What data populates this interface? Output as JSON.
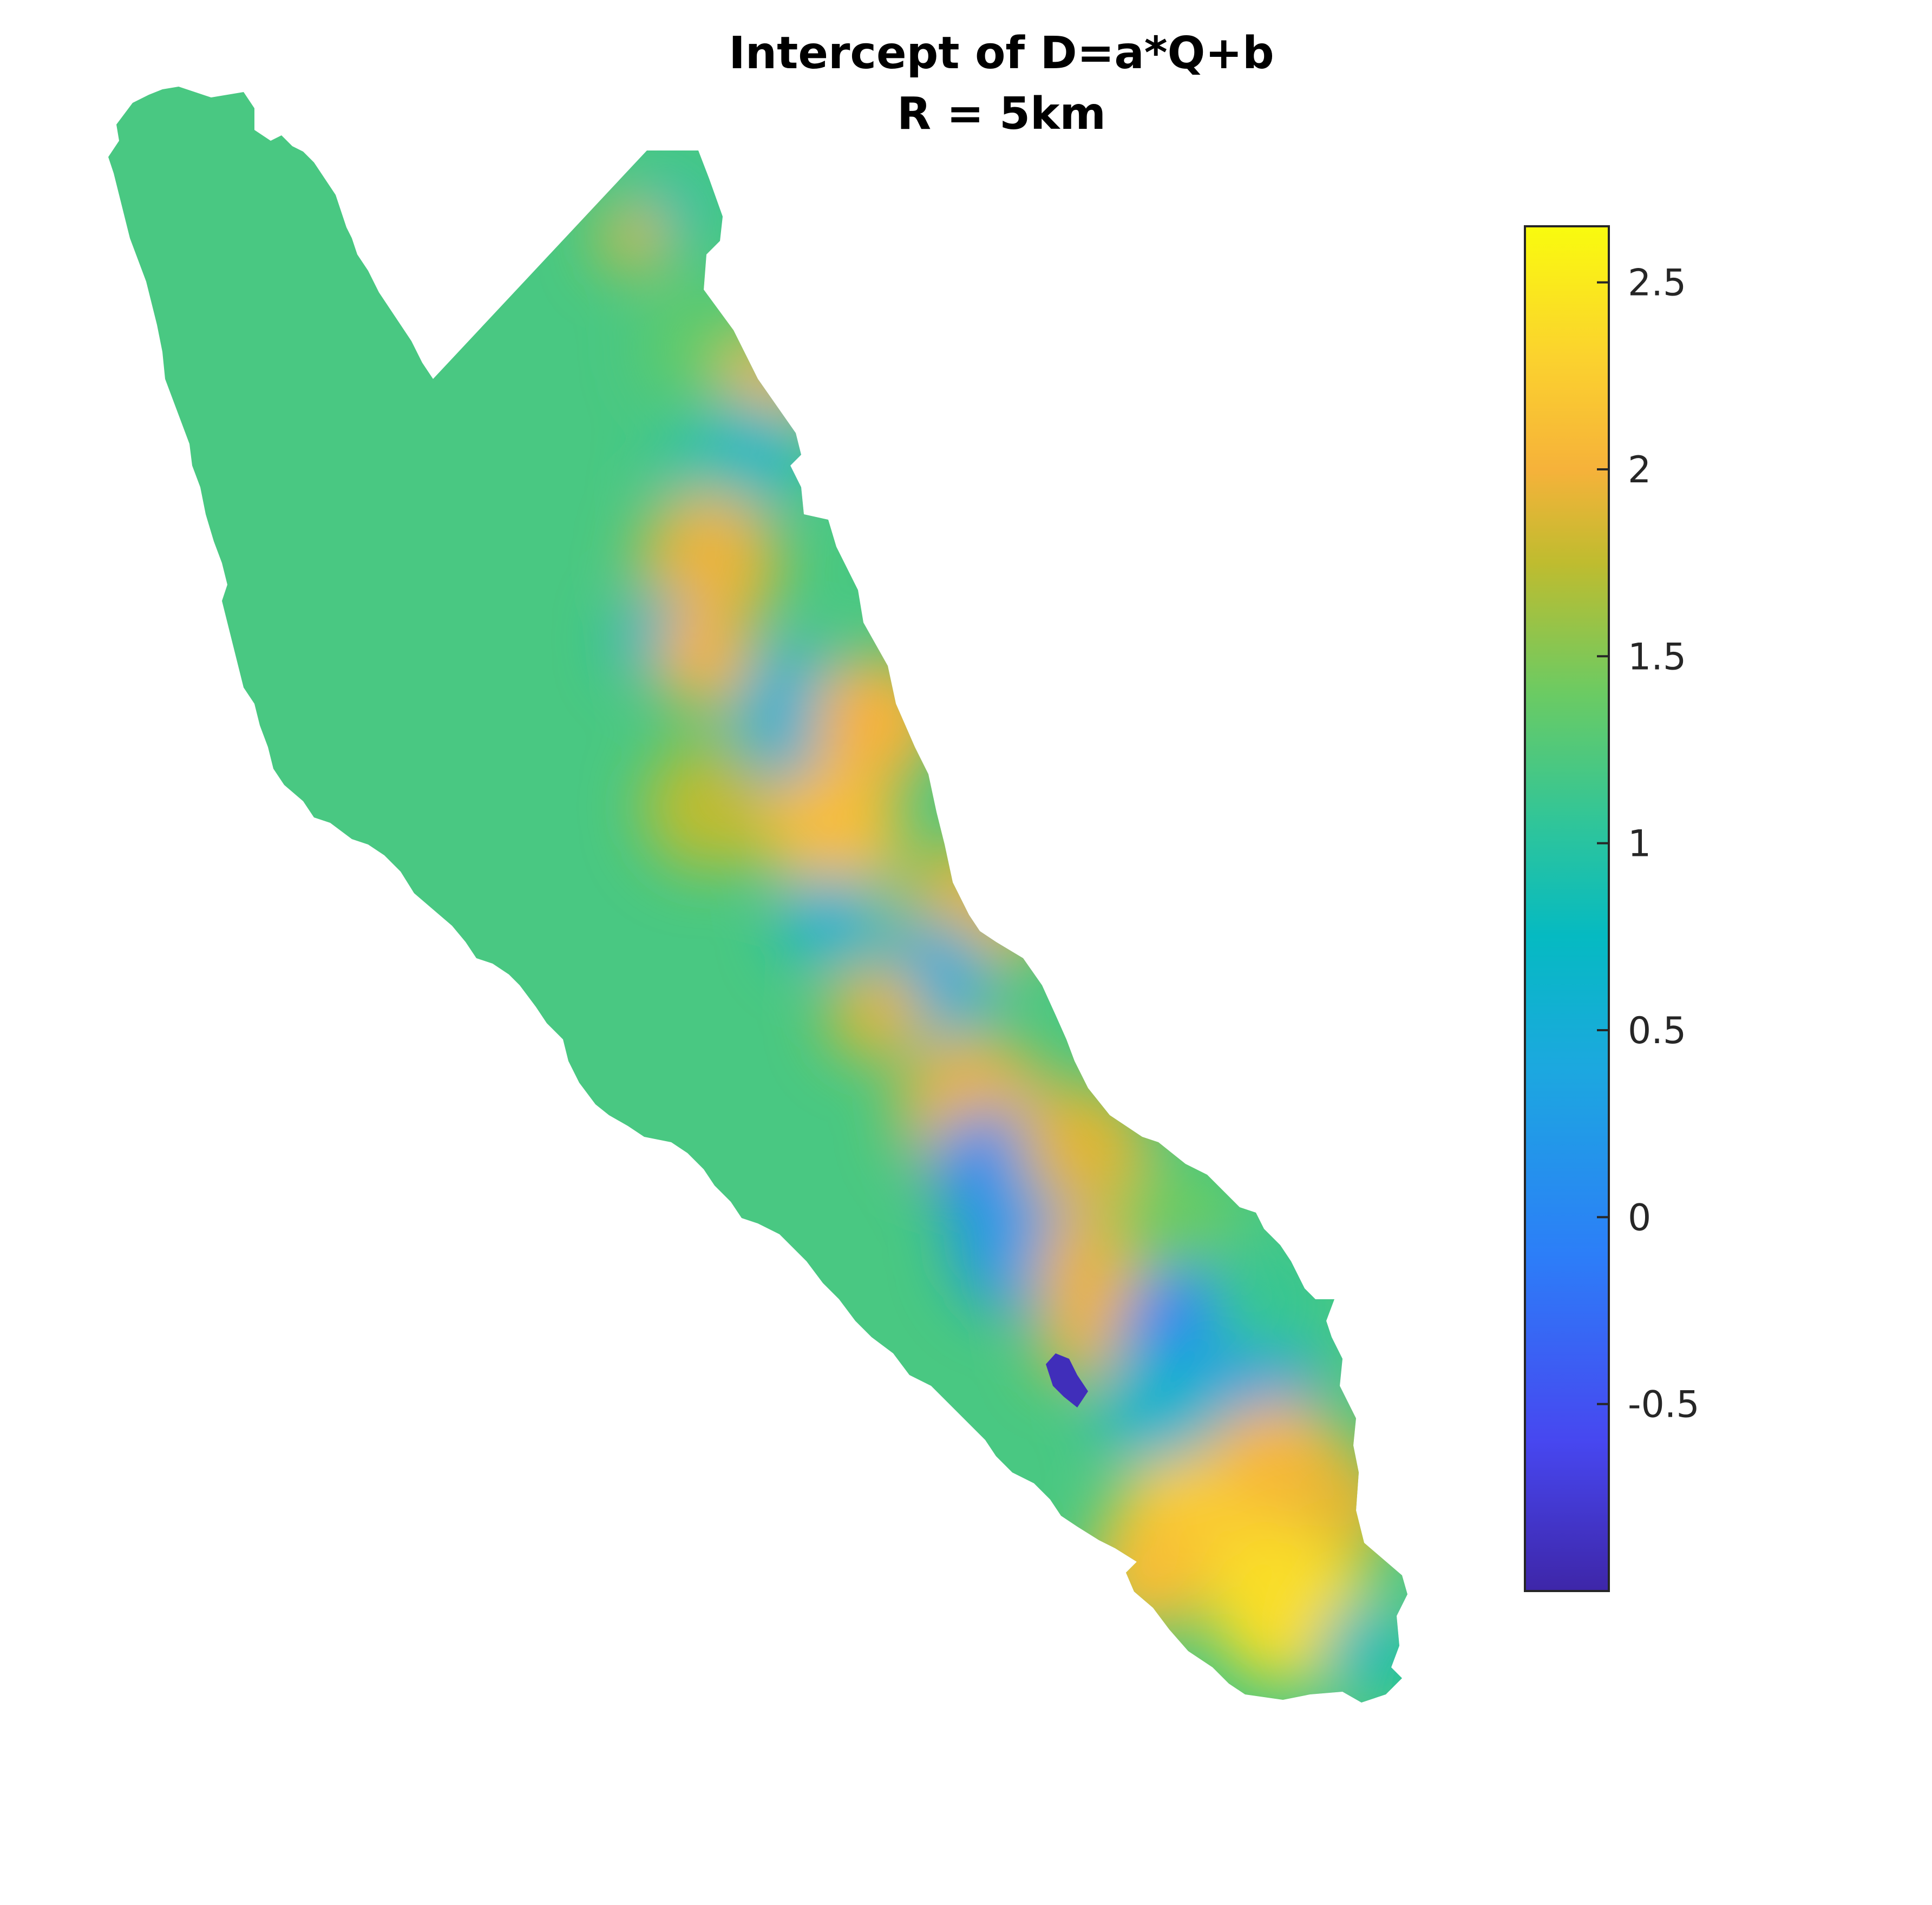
{
  "chart_data": {
    "type": "heatmap",
    "title": "Intercept of D=a*Q+b",
    "subtitle": "R = 5km",
    "xlabel": "",
    "ylabel": "",
    "axes_visible": false,
    "colormap": "parula",
    "colorbar": {
      "location": "right",
      "range": [
        -1.0,
        2.65
      ],
      "ticks": [
        -0.5,
        0,
        0.5,
        1,
        1.5,
        2,
        2.5
      ],
      "tick_labels": [
        "-0.5",
        "0",
        "0.5",
        "1",
        "1.5",
        "2",
        "2.5"
      ],
      "color_stops": [
        {
          "value": -1.0,
          "color": "#3e26a8"
        },
        {
          "value": -0.6,
          "color": "#4747f0"
        },
        {
          "value": -0.1,
          "color": "#2c7ef8"
        },
        {
          "value": 0.4,
          "color": "#1ca8df"
        },
        {
          "value": 0.75,
          "color": "#05bac2"
        },
        {
          "value": 1.05,
          "color": "#2fc59a"
        },
        {
          "value": 1.4,
          "color": "#6bcb63"
        },
        {
          "value": 1.75,
          "color": "#bfbc2f"
        },
        {
          "value": 2.0,
          "color": "#f6b23a"
        },
        {
          "value": 2.3,
          "color": "#fbd22e"
        },
        {
          "value": 2.65,
          "color": "#f9fb0e"
        }
      ]
    },
    "field_description_values": {
      "background_level": 1.2,
      "coastline_shape": "elongated island running from north-northwest to south-southeast"
    }
  }
}
